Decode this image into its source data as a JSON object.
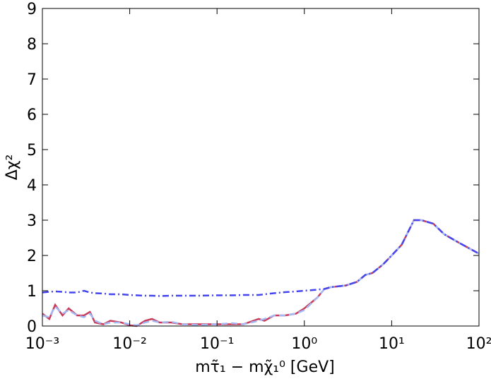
{
  "chart_data": {
    "type": "line",
    "xlabel": "mτ̃₁ − mχ̃₁⁰ [GeV]",
    "ylabel": "Δχ²",
    "xscale": "log",
    "xlim": [
      0.001,
      100
    ],
    "ylim": [
      0,
      9
    ],
    "xticks": [
      {
        "value": 0.001,
        "label": "10⁻³"
      },
      {
        "value": 0.01,
        "label": "10⁻²"
      },
      {
        "value": 0.1,
        "label": "10⁻¹"
      },
      {
        "value": 1,
        "label": "10⁰"
      },
      {
        "value": 10,
        "label": "10¹"
      },
      {
        "value": 100,
        "label": "10²"
      }
    ],
    "yticks": [
      0,
      1,
      2,
      3,
      4,
      5,
      6,
      7,
      8,
      9
    ],
    "x": [
      0.001,
      0.0012,
      0.0014,
      0.0017,
      0.002,
      0.0025,
      0.003,
      0.0035,
      0.004,
      0.005,
      0.006,
      0.008,
      0.01,
      0.012,
      0.015,
      0.018,
      0.022,
      0.03,
      0.04,
      0.06,
      0.1,
      0.15,
      0.2,
      0.3,
      0.35,
      0.45,
      0.6,
      0.8,
      1,
      1.4,
      1.7,
      2,
      3,
      4,
      5,
      6,
      8,
      10,
      13,
      18,
      22,
      30,
      40,
      60,
      100
    ],
    "series": [
      {
        "color": "#c83c5a",
        "style": "solid",
        "values": [
          0.35,
          0.2,
          0.6,
          0.3,
          0.5,
          0.3,
          0.3,
          0.4,
          0.1,
          0.05,
          0.15,
          0.1,
          0.02,
          0.0,
          0.15,
          0.2,
          0.1,
          0.1,
          0.05,
          0.05,
          0.05,
          0.05,
          0.05,
          0.2,
          0.15,
          0.3,
          0.3,
          0.35,
          0.5,
          0.8,
          1.05,
          1.1,
          1.15,
          1.25,
          1.45,
          1.5,
          1.75,
          2.0,
          2.3,
          3.0,
          3.0,
          2.9,
          2.6,
          2.35,
          2.05
        ]
      },
      {
        "color": "#a4b8f4",
        "style": "dashed",
        "values": [
          0.3,
          0.25,
          0.55,
          0.35,
          0.45,
          0.3,
          0.25,
          0.35,
          0.15,
          0.05,
          0.1,
          0.1,
          0.05,
          0.02,
          0.1,
          0.15,
          0.1,
          0.12,
          0.05,
          0.03,
          0.05,
          0.08,
          0.05,
          0.15,
          0.2,
          0.3,
          0.3,
          0.35,
          0.45,
          0.8,
          1.05,
          1.1,
          1.15,
          1.25,
          1.45,
          1.5,
          1.75,
          2.0,
          2.3,
          3.0,
          3.0,
          2.9,
          2.6,
          2.35,
          2.05
        ]
      },
      {
        "color": "#4646ee",
        "style": "dashdot",
        "values": [
          0.95,
          0.97,
          0.98,
          0.97,
          0.95,
          0.95,
          1.0,
          0.95,
          0.93,
          0.92,
          0.9,
          0.9,
          0.88,
          0.87,
          0.86,
          0.86,
          0.85,
          0.86,
          0.86,
          0.86,
          0.87,
          0.87,
          0.88,
          0.88,
          0.9,
          0.93,
          0.96,
          0.98,
          1.0,
          1.03,
          1.05,
          1.1,
          1.15,
          1.25,
          1.45,
          1.5,
          1.75,
          2.0,
          2.3,
          3.0,
          3.0,
          2.9,
          2.6,
          2.35,
          2.05
        ]
      }
    ]
  }
}
